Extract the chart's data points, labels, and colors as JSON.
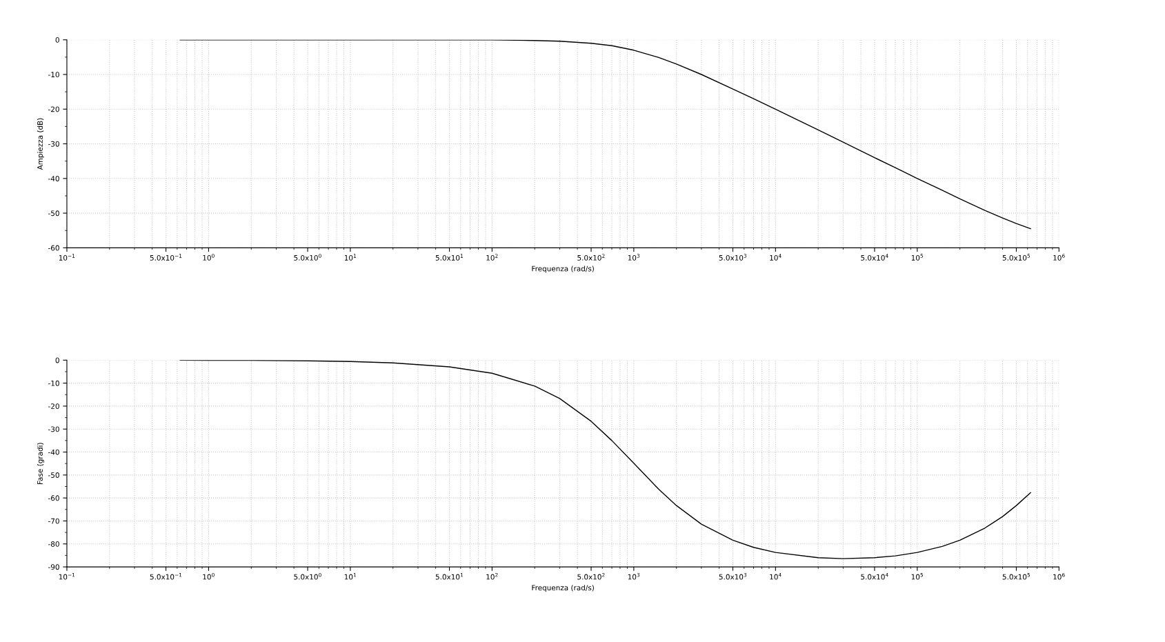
{
  "chart_data": [
    {
      "type": "line",
      "xlabel": "Frequenza (rad/s)",
      "ylabel": "Ampiezza (dB)",
      "log": "x",
      "grid": true,
      "marker": "none",
      "line_style": "solid",
      "x": [
        0.63,
        1,
        2,
        5,
        10,
        20,
        50,
        100,
        200,
        300,
        500,
        700,
        1000,
        1500,
        2000,
        3000,
        5000,
        7000,
        10000,
        20000,
        30000,
        50000,
        70000,
        100000,
        150000,
        200000,
        300000,
        400000,
        500000,
        630000
      ],
      "series": [
        {
          "color": "#000000",
          "values": [
            0,
            0,
            0,
            0,
            0,
            0,
            0,
            0,
            -0.2,
            -0.4,
            -1.0,
            -1.7,
            -3.0,
            -5.1,
            -7.0,
            -10.0,
            -14.2,
            -17.0,
            -20.0,
            -26.0,
            -29.5,
            -34.0,
            -36.9,
            -40.0,
            -43.4,
            -45.9,
            -49.2,
            -51.4,
            -53.0,
            -54.5
          ]
        }
      ],
      "xlim": [
        0.1,
        1000000
      ],
      "ylim": [
        -60,
        0
      ],
      "xticks": [
        {
          "value": 0.1,
          "label": "10$^{−1}$"
        },
        {
          "value": 0.5,
          "label": "5.0x10$^{−1}$"
        },
        {
          "value": 1,
          "label": "10$^{0}$"
        },
        {
          "value": 5,
          "label": "5.0x10$^{0}$"
        },
        {
          "value": 10,
          "label": "10$^{1}$"
        },
        {
          "value": 50,
          "label": "5.0x10$^{1}$"
        },
        {
          "value": 100,
          "label": "10$^{2}$"
        },
        {
          "value": 500,
          "label": "5.0x10$^{2}$"
        },
        {
          "value": 1000,
          "label": "10$^{3}$"
        },
        {
          "value": 5000,
          "label": "5.0x10$^{3}$"
        },
        {
          "value": 10000,
          "label": "10$^{4}$"
        },
        {
          "value": 50000,
          "label": "5.0x10$^{4}$"
        },
        {
          "value": 100000,
          "label": "10$^{5}$"
        },
        {
          "value": 500000,
          "label": "5.0x10$^{5}$"
        },
        {
          "value": 1000000,
          "label": "10$^{6}$"
        }
      ],
      "yticks": [
        0,
        -10,
        -20,
        -30,
        -40,
        -50,
        -60
      ]
    },
    {
      "type": "line",
      "xlabel": "Frequenza (rad/s)",
      "ylabel": "Fase (gradi)",
      "log": "x",
      "grid": true,
      "marker": "none",
      "line_style": "solid",
      "x": [
        0.63,
        1,
        2,
        5,
        10,
        20,
        50,
        100,
        200,
        300,
        500,
        700,
        1000,
        1500,
        2000,
        3000,
        5000,
        7000,
        10000,
        20000,
        30000,
        50000,
        70000,
        100000,
        150000,
        200000,
        300000,
        400000,
        500000,
        630000
      ],
      "series": [
        {
          "color": "#000000",
          "values": [
            0,
            -0.1,
            -0.1,
            -0.3,
            -0.6,
            -1.2,
            -2.9,
            -5.7,
            -11.3,
            -16.7,
            -26.6,
            -35.0,
            -44.9,
            -56.2,
            -63.3,
            -71.4,
            -78.4,
            -81.5,
            -83.7,
            -86.0,
            -86.4,
            -86.0,
            -85.2,
            -83.7,
            -81.1,
            -78.4,
            -73.1,
            -68.1,
            -63.3,
            -57.7
          ]
        }
      ],
      "xlim": [
        0.1,
        1000000
      ],
      "ylim": [
        -90,
        0
      ],
      "xticks": [
        {
          "value": 0.1,
          "label": "10$^{−1}$"
        },
        {
          "value": 0.5,
          "label": "5.0x10$^{−1}$"
        },
        {
          "value": 1,
          "label": "10$^{0}$"
        },
        {
          "value": 5,
          "label": "5.0x10$^{0}$"
        },
        {
          "value": 10,
          "label": "10$^{1}$"
        },
        {
          "value": 50,
          "label": "5.0x10$^{1}$"
        },
        {
          "value": 100,
          "label": "10$^{2}$"
        },
        {
          "value": 500,
          "label": "5.0x10$^{2}$"
        },
        {
          "value": 1000,
          "label": "10$^{3}$"
        },
        {
          "value": 5000,
          "label": "5.0x10$^{3}$"
        },
        {
          "value": 10000,
          "label": "10$^{4}$"
        },
        {
          "value": 50000,
          "label": "5.0x10$^{4}$"
        },
        {
          "value": 100000,
          "label": "10$^{5}$"
        },
        {
          "value": 500000,
          "label": "5.0x10$^{5}$"
        },
        {
          "value": 1000000,
          "label": "10$^{6}$"
        }
      ],
      "yticks": [
        0,
        -10,
        -20,
        -30,
        -40,
        -50,
        -60,
        -70,
        -80,
        -90
      ]
    }
  ]
}
